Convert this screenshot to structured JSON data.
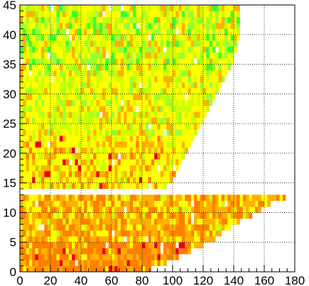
{
  "chart_data": {
    "type": "heatmap",
    "title": "",
    "xlabel": "",
    "ylabel": "",
    "xlim": [
      0,
      180
    ],
    "ylim": [
      0,
      45
    ],
    "x_ticks": [
      "0",
      "20",
      "40",
      "60",
      "80",
      "100",
      "120",
      "140",
      "160",
      "180"
    ],
    "y_ticks": [
      "0",
      "5",
      "10",
      "15",
      "20",
      "25",
      "30",
      "35",
      "40",
      "45"
    ],
    "grid": true,
    "grid_style": "dotted",
    "bin_width_x": 2,
    "bin_height_y": 1,
    "x_start": 0,
    "empty_rows_y": [
      13
    ],
    "row_max_x": [
      88,
      96,
      104,
      112,
      120,
      128,
      132,
      138,
      146,
      152,
      158,
      164,
      174,
      0,
      96,
      100,
      102,
      104,
      106,
      108,
      110,
      112,
      114,
      116,
      118,
      120,
      122,
      124,
      126,
      128,
      130,
      132,
      134,
      136,
      138,
      139,
      140,
      141,
      142,
      143,
      144,
      144,
      144,
      144,
      144
    ],
    "value_gradient": "low values orange, mid values yellow, high values green",
    "palette": {
      "orange_dark": "#ff7f00",
      "orange": "#ffb000",
      "yellow": "#ffff00",
      "yellow_green": "#ccff00",
      "green_light": "#99ff33",
      "green": "#33ff33",
      "red_hot": "#e8001a",
      "cyan": "#00ffcc"
    }
  }
}
